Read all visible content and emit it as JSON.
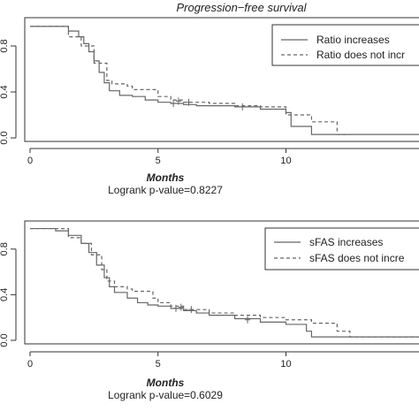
{
  "chart_data": [
    {
      "type": "line",
      "title": "Progression−free survival",
      "xlabel": "Months",
      "caption": "Logrank p-value=0.8227",
      "xlim": [
        0,
        15.2
      ],
      "ylim": [
        0,
        1
      ],
      "xticks": [
        0,
        5,
        10
      ],
      "yticks": [
        0.0,
        0.4,
        0.8
      ],
      "ytick_labels": [
        "0.0",
        "0.4",
        "0.8"
      ],
      "legend_position": "top-right",
      "series": [
        {
          "name": "Ratio increases",
          "style": "solid",
          "color": "#666666",
          "x": [
            0,
            1.0,
            1.5,
            1.9,
            2.1,
            2.3,
            2.5,
            2.7,
            2.9,
            3.1,
            3.5,
            4.0,
            4.5,
            5.0,
            5.5,
            6.0,
            6.5,
            7.0,
            8.0,
            9.0,
            10.0,
            10.2,
            11.0,
            15.2
          ],
          "y": [
            0.97,
            0.97,
            0.93,
            0.88,
            0.82,
            0.75,
            0.67,
            0.57,
            0.48,
            0.41,
            0.37,
            0.36,
            0.33,
            0.31,
            0.3,
            0.29,
            0.28,
            0.28,
            0.27,
            0.25,
            0.22,
            0.1,
            0.03,
            0.03
          ],
          "censored": [
            [
              5.6,
              0.3
            ],
            [
              8.3,
              0.27
            ]
          ]
        },
        {
          "name": "Ratio does not incr",
          "style": "dashed",
          "color": "#666666",
          "x": [
            0,
            1.5,
            2.0,
            2.5,
            3.0,
            3.2,
            3.8,
            4.0,
            5.0,
            5.5,
            6.0,
            7.0,
            8.0,
            9.0,
            10.0,
            11.0,
            12.0,
            12.5
          ],
          "y": [
            0.97,
            0.88,
            0.8,
            0.65,
            0.5,
            0.47,
            0.45,
            0.42,
            0.36,
            0.33,
            0.31,
            0.3,
            0.28,
            0.27,
            0.2,
            0.14,
            0.03,
            0.03
          ],
          "censored": [
            [
              5.8,
              0.32
            ],
            [
              6.2,
              0.31
            ]
          ]
        }
      ]
    },
    {
      "type": "line",
      "xlabel": "Months",
      "caption": "Logrank p-value=0.6029",
      "xlim": [
        0,
        15.2
      ],
      "ylim": [
        0,
        1
      ],
      "xticks": [
        0,
        5,
        10
      ],
      "yticks": [
        0.0,
        0.4,
        0.8
      ],
      "ytick_labels": [
        "0.0",
        "0.4",
        "0.8"
      ],
      "legend_position": "top-right",
      "series": [
        {
          "name": "sFAS increases",
          "style": "solid",
          "color": "#666666",
          "x": [
            0,
            1.0,
            1.5,
            2.0,
            2.3,
            2.6,
            2.9,
            3.1,
            3.3,
            3.8,
            4.2,
            4.6,
            5.0,
            5.5,
            6.0,
            6.5,
            7.0,
            8.0,
            9.0,
            10.0,
            10.8,
            11.0,
            15.2
          ],
          "y": [
            0.98,
            0.96,
            0.92,
            0.85,
            0.77,
            0.66,
            0.55,
            0.47,
            0.42,
            0.37,
            0.33,
            0.31,
            0.3,
            0.28,
            0.26,
            0.24,
            0.22,
            0.19,
            0.16,
            0.14,
            0.08,
            0.03,
            0.03
          ],
          "censored": [
            [
              5.7,
              0.28
            ],
            [
              8.5,
              0.18
            ]
          ]
        },
        {
          "name": "sFAS does not incre",
          "style": "dashed",
          "color": "#666666",
          "x": [
            0,
            1.5,
            2.0,
            2.4,
            2.8,
            3.0,
            3.3,
            3.8,
            4.0,
            4.8,
            5.0,
            5.5,
            6.0,
            7.0,
            8.0,
            9.0,
            10.0,
            11.0,
            12.0,
            12.5,
            15.2
          ],
          "y": [
            0.98,
            0.9,
            0.85,
            0.75,
            0.62,
            0.52,
            0.47,
            0.45,
            0.43,
            0.37,
            0.33,
            0.3,
            0.27,
            0.24,
            0.22,
            0.2,
            0.18,
            0.15,
            0.08,
            0.03,
            0.03
          ],
          "censored": [
            [
              5.9,
              0.29
            ],
            [
              6.3,
              0.27
            ]
          ]
        }
      ]
    }
  ]
}
